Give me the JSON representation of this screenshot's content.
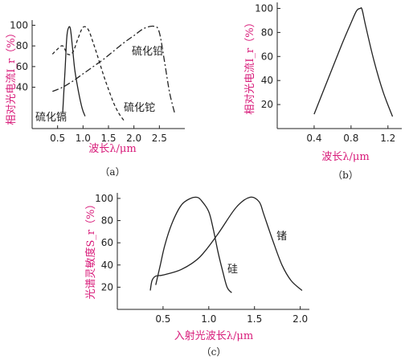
{
  "chart_data": [
    {
      "type": "line",
      "caption": "（a）",
      "xlabel": "波长λ/μm",
      "ylabel": "相对光电流I_r（%）",
      "xlim": [
        0,
        3.0
      ],
      "ylim": [
        0,
        105
      ],
      "xticks": [
        "0.5",
        "1.0",
        "1.5",
        "2.0",
        "2.5"
      ],
      "yticks": [
        "40",
        "60",
        "80",
        "100"
      ],
      "series": [
        {
          "name": "硫化镉",
          "style": "solid",
          "x": [
            0.6,
            0.65,
            0.68,
            0.71,
            0.75,
            0.79,
            0.84,
            0.91,
            0.98,
            1.04
          ],
          "y": [
            15,
            60,
            88,
            97,
            97,
            80,
            56,
            36,
            20,
            12
          ]
        },
        {
          "name": "硫化铊",
          "style": "dashed",
          "x": [
            0.4,
            0.5,
            0.6,
            0.7,
            0.8,
            0.9,
            1.0,
            1.1,
            1.2,
            1.3,
            1.4,
            1.5,
            1.6,
            1.7,
            1.8
          ],
          "y": [
            72,
            77,
            80,
            72,
            74,
            87,
            98,
            96,
            83,
            68,
            52,
            38,
            25,
            15,
            8
          ]
        },
        {
          "name": "硫化铅",
          "style": "dash-dot",
          "x": [
            0.4,
            0.6,
            0.8,
            1.0,
            1.2,
            1.4,
            1.6,
            1.8,
            2.0,
            2.2,
            2.4,
            2.5,
            2.6,
            2.7,
            2.8
          ],
          "y": [
            36,
            40,
            46,
            53,
            60,
            67,
            75,
            83,
            90,
            97,
            99,
            93,
            65,
            35,
            15
          ]
        }
      ],
      "annotations": [
        "硫化铅",
        "硫化铊",
        "硫化镉"
      ]
    },
    {
      "type": "line",
      "caption": "（b）",
      "xlabel": "波长λ/μm",
      "ylabel": "相对光电流I_r（%）",
      "xlim": [
        0,
        1.35
      ],
      "ylim": [
        0,
        105
      ],
      "xticks": [
        "0.4",
        "0.8",
        "1.2"
      ],
      "yticks": [
        "20",
        "40",
        "60",
        "80",
        "100"
      ],
      "series": [
        {
          "name": "",
          "style": "solid",
          "x": [
            0.4,
            0.55,
            0.7,
            0.8,
            0.86,
            0.9,
            0.92,
            0.96,
            1.05,
            1.15,
            1.25
          ],
          "y": [
            12,
            41,
            70,
            88,
            98,
            100,
            99,
            85,
            56,
            30,
            10
          ]
        }
      ]
    },
    {
      "type": "line",
      "caption": "（c）",
      "xlabel": "入射光波长λ/μm",
      "ylabel": "光谱灵敏度S_r（%）",
      "xlim": [
        0,
        2.1
      ],
      "ylim": [
        0,
        105
      ],
      "xticks": [
        "0.5",
        "1.0",
        "1.5",
        "2.0"
      ],
      "yticks": [
        "20",
        "40",
        "60",
        "80",
        "100"
      ],
      "series": [
        {
          "name": "硅",
          "style": "solid",
          "x": [
            0.42,
            0.47,
            0.52,
            0.6,
            0.7,
            0.8,
            0.87,
            0.92,
            1.0,
            1.05,
            1.1,
            1.15,
            1.2,
            1.25
          ],
          "y": [
            22,
            40,
            58,
            78,
            94,
            100,
            101,
            98,
            88,
            72,
            52,
            35,
            20,
            15
          ]
        },
        {
          "name": "锗",
          "style": "solid",
          "x": [
            0.36,
            0.38,
            0.42,
            0.5,
            0.7,
            0.9,
            1.1,
            1.3,
            1.45,
            1.55,
            1.6,
            1.7,
            1.8,
            1.9,
            2.02
          ],
          "y": [
            17,
            26,
            30,
            31,
            36,
            47,
            68,
            92,
            101,
            97,
            86,
            62,
            40,
            26,
            17
          ]
        }
      ],
      "annotations": [
        "硅",
        "锗"
      ]
    }
  ]
}
